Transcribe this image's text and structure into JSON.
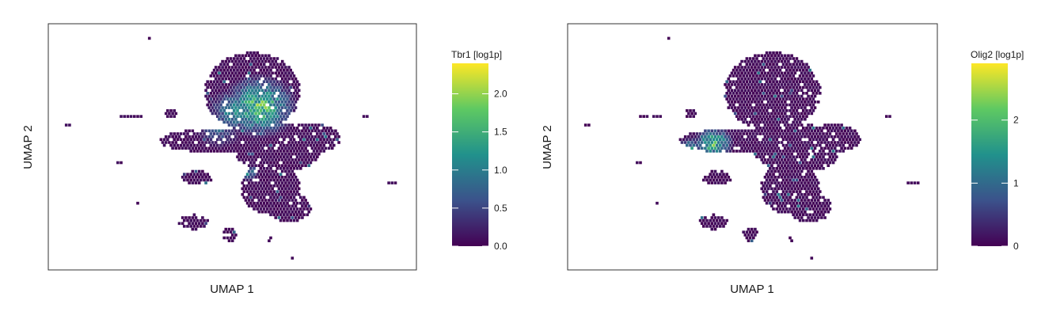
{
  "chart_data": [
    {
      "type": "scatter",
      "subtype": "hexbin-embedding",
      "xlabel": "UMAP 1",
      "ylabel": "UMAP 2",
      "color_title": "Tbr1 [log1p]",
      "color_range": [
        0,
        2.4
      ],
      "color_ticks": [
        0.0,
        0.5,
        1.0,
        1.5,
        2.0
      ],
      "color_tick_labels": [
        "0.0",
        "0.5",
        "1.0",
        "1.5",
        "2.0"
      ],
      "colormap": [
        "#440154",
        "#3b528b",
        "#21918c",
        "#5ec962",
        "#fde725"
      ],
      "grid": false,
      "legend": "right"
    },
    {
      "type": "scatter",
      "subtype": "hexbin-embedding",
      "xlabel": "UMAP 1",
      "ylabel": "UMAP 2",
      "color_title": "Olig2 [log1p]",
      "color_range": [
        0,
        2.9
      ],
      "color_ticks": [
        0,
        1,
        2
      ],
      "color_tick_labels": [
        "0",
        "1",
        "2"
      ],
      "colormap": [
        "#440154",
        "#3b528b",
        "#21918c",
        "#5ec962",
        "#fde725"
      ],
      "grid": false,
      "legend": "right"
    }
  ]
}
